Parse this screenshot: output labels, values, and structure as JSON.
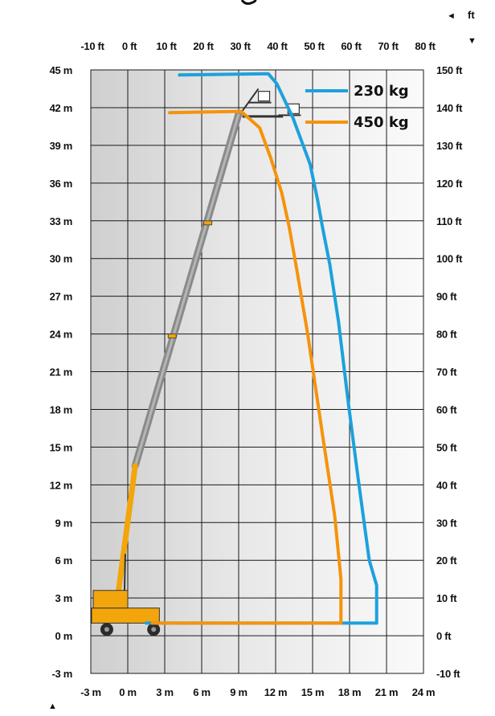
{
  "chart_data": {
    "type": "line",
    "title": "",
    "units_label": "ft",
    "x_bottom": {
      "unit": "m",
      "range": [
        -3,
        24
      ],
      "ticks": [
        "-3 m",
        "0 m",
        "3 m",
        "6 m",
        "9 m",
        "12 m",
        "15 m",
        "18 m",
        "21 m",
        "24 m"
      ]
    },
    "x_top": {
      "unit": "ft",
      "ticks": [
        "-10 ft",
        "0 ft",
        "10 ft",
        "20 ft",
        "30 ft",
        "40 ft",
        "50 ft",
        "60 ft",
        "70 ft",
        "80 ft"
      ]
    },
    "y_left": {
      "unit": "m",
      "range": [
        -3,
        45
      ],
      "ticks": [
        "45 m",
        "42 m",
        "39 m",
        "36 m",
        "33 m",
        "30 m",
        "27 m",
        "24 m",
        "21 m",
        "18 m",
        "15 m",
        "12 m",
        "9 m",
        "6 m",
        "3 m",
        "0 m",
        "-3 m"
      ]
    },
    "y_right": {
      "unit": "ft",
      "ticks": [
        "150 ft",
        "140 ft",
        "130 ft",
        "120 ft",
        "110 ft",
        "100 ft",
        "90 ft",
        "80 ft",
        "70 ft",
        "60 ft",
        "50 ft",
        "40 ft",
        "30 ft",
        "20 ft",
        "10 ft",
        "0 ft",
        "-10 ft"
      ]
    },
    "grid": true,
    "legend_position": "top-right",
    "series": [
      {
        "name": "230 kg",
        "color": "#1da1dd",
        "points": [
          [
            4.2,
            44.6
          ],
          [
            11.4,
            44.7
          ],
          [
            12.1,
            43.9
          ],
          [
            13.4,
            41.2
          ],
          [
            14.8,
            37.5
          ],
          [
            15.4,
            34.7
          ],
          [
            15.8,
            32.5
          ],
          [
            16.4,
            29.5
          ],
          [
            17.1,
            25.0
          ],
          [
            17.9,
            18.5
          ],
          [
            18.7,
            12.5
          ],
          [
            19.6,
            6.0
          ],
          [
            20.2,
            4.0
          ],
          [
            20.2,
            1.0
          ],
          [
            1.5,
            1.0
          ]
        ]
      },
      {
        "name": "450 kg",
        "color": "#f5930c",
        "points": [
          [
            3.4,
            41.6
          ],
          [
            9.2,
            41.7
          ],
          [
            10.7,
            40.4
          ],
          [
            11.6,
            38.0
          ],
          [
            12.5,
            35.2
          ],
          [
            13.1,
            32.5
          ],
          [
            13.7,
            29.2
          ],
          [
            14.6,
            24.0
          ],
          [
            15.8,
            16.0
          ],
          [
            16.8,
            9.5
          ],
          [
            17.3,
            4.5
          ],
          [
            17.3,
            1.0
          ],
          [
            2.0,
            1.0
          ]
        ]
      }
    ]
  },
  "legend": [
    {
      "name": "230 kg",
      "color": "#1da1dd"
    },
    {
      "name": "450 kg",
      "color": "#f5930c"
    }
  ],
  "controls": {
    "collapse_arrow": "◄",
    "dropdown_arrow": "▼",
    "scroll_up_arrow": "▲"
  }
}
